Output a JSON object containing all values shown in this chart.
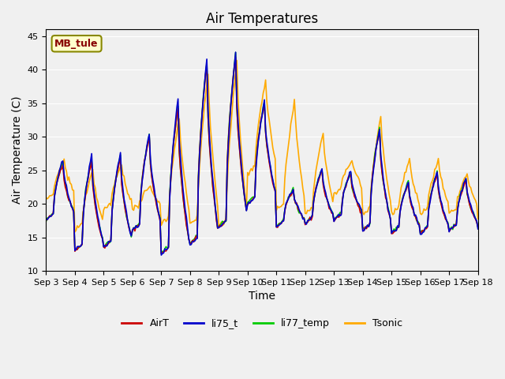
{
  "title": "Air Temperatures",
  "xlabel": "Time",
  "ylabel": "Air Temperature (C)",
  "ylim": [
    10,
    46
  ],
  "yticks": [
    10,
    15,
    20,
    25,
    30,
    35,
    40,
    45
  ],
  "xlim": [
    0,
    360
  ],
  "legend_labels": [
    "AirT",
    "li75_t",
    "li77_temp",
    "Tsonic"
  ],
  "line_colors": [
    "#cc0000",
    "#0000cc",
    "#00cc00",
    "#ffaa00"
  ],
  "bg_color": "#f0f0f0",
  "annotation_text": "MB_tule",
  "title_fontsize": 12,
  "axis_label_fontsize": 10,
  "tick_fontsize": 8,
  "xtick_labels": [
    "Sep 3",
    "Sep 4",
    "Sep 5",
    "Sep 6",
    "Sep 7",
    "Sep 8",
    "Sep 9",
    "Sep 10",
    "Sep 11",
    "Sep 12",
    "Sep 13",
    "Sep 14",
    "Sep 15",
    "Sep 16",
    "Sep 17",
    "Sep 18"
  ],
  "xtick_positions": [
    0,
    24,
    48,
    72,
    96,
    120,
    144,
    168,
    192,
    216,
    240,
    264,
    288,
    312,
    336,
    360
  ]
}
